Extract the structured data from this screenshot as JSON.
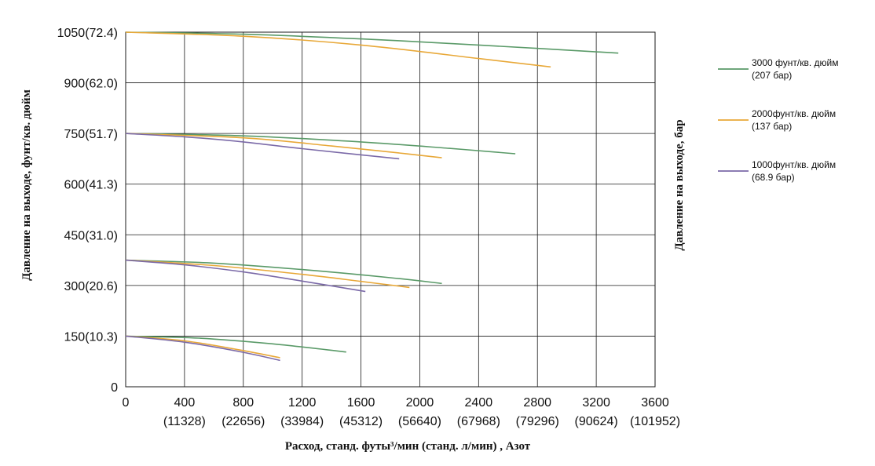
{
  "chart_data": {
    "type": "line",
    "xlabel": "Расход, станд. футы³/мин (станд. л/мин) , Азот",
    "ylabel": "Давление на выходе, фунт/кв. дюйм",
    "y2label": "Давление на выходе, бар",
    "xlim": [
      0,
      3600
    ],
    "ylim": [
      0,
      1050
    ],
    "grid": true,
    "legend_position": "right",
    "x_ticks": [
      {
        "value": 0,
        "label": "0",
        "sublabel": ""
      },
      {
        "value": 400,
        "label": "400",
        "sublabel": "(11328)"
      },
      {
        "value": 800,
        "label": "800",
        "sublabel": "(22656)"
      },
      {
        "value": 1200,
        "label": "1200",
        "sublabel": "(33984)"
      },
      {
        "value": 1600,
        "label": "1600",
        "sublabel": "(45312)"
      },
      {
        "value": 2000,
        "label": "2000",
        "sublabel": "(56640)"
      },
      {
        "value": 2400,
        "label": "2400",
        "sublabel": "(67968)"
      },
      {
        "value": 2800,
        "label": "2800",
        "sublabel": "(79296)"
      },
      {
        "value": 3200,
        "label": "3200",
        "sublabel": "(90624)"
      },
      {
        "value": 3600,
        "label": "3600",
        "sublabel": "(101952)"
      }
    ],
    "y_ticks": [
      {
        "value": 0,
        "label": "0"
      },
      {
        "value": 150,
        "label": "150(10.3)"
      },
      {
        "value": 300,
        "label": "300(20.6)"
      },
      {
        "value": 450,
        "label": "450(31.0)"
      },
      {
        "value": 600,
        "label": "600(41.3)"
      },
      {
        "value": 750,
        "label": "750(51.7)"
      },
      {
        "value": 900,
        "label": "900(62.0)"
      },
      {
        "value": 1050,
        "label": "1050(72.4)"
      }
    ],
    "series": [
      {
        "name": "3000 фунт/кв. дюйм (207 бар)",
        "legend_lines": [
          "3000 фунт/кв. дюйм",
          "(207 бар)"
        ],
        "color": "#5a9a68",
        "curves": [
          {
            "x": [
              0,
              800,
              1600,
              2400,
              3350
            ],
            "y": [
              1050,
              1044,
              1030,
              1012,
              988
            ]
          },
          {
            "x": [
              0,
              800,
              1600,
              2200,
              2650
            ],
            "y": [
              750,
              743,
              725,
              706,
              690
            ]
          },
          {
            "x": [
              0,
              600,
              1200,
              1800,
              2150
            ],
            "y": [
              375,
              366,
              347,
              323,
              306
            ]
          },
          {
            "x": [
              0,
              500,
              1000,
              1500
            ],
            "y": [
              150,
              144,
              127,
              103
            ]
          }
        ]
      },
      {
        "name": "2000фунт/кв. дюйм (137 бар)",
        "legend_lines": [
          "2000фунт/кв. дюйм",
          "(137 бар)"
        ],
        "color": "#e8a838",
        "curves": [
          {
            "x": [
              0,
              800,
              1600,
              2400,
              2890
            ],
            "y": [
              1050,
              1038,
              1012,
              972,
              947
            ]
          },
          {
            "x": [
              0,
              800,
              1400,
              1800,
              2150
            ],
            "y": [
              750,
              737,
              713,
              695,
              678
            ]
          },
          {
            "x": [
              0,
              600,
              1200,
              1600,
              1930
            ],
            "y": [
              375,
              359,
              333,
              312,
              294
            ]
          },
          {
            "x": [
              0,
              400,
              800,
              1050
            ],
            "y": [
              150,
              136,
              107,
              86
            ]
          }
        ]
      },
      {
        "name": "1000фунт/кв. дюйм (68.9 бар)",
        "legend_lines": [
          "1000фунт/кв. дюйм",
          "(68.9 бар)"
        ],
        "color": "#7b6aa8",
        "curves": [
          {
            "x": [
              0,
              400,
              800,
              1200,
              1860
            ],
            "y": [
              750,
              740,
              725,
              705,
              675
            ]
          },
          {
            "x": [
              0,
              400,
              800,
              1200,
              1630
            ],
            "y": [
              375,
              361,
              340,
              313,
              282
            ]
          },
          {
            "x": [
              0,
              400,
              800,
              1050
            ],
            "y": [
              150,
              132,
              102,
              78
            ]
          }
        ]
      }
    ]
  }
}
